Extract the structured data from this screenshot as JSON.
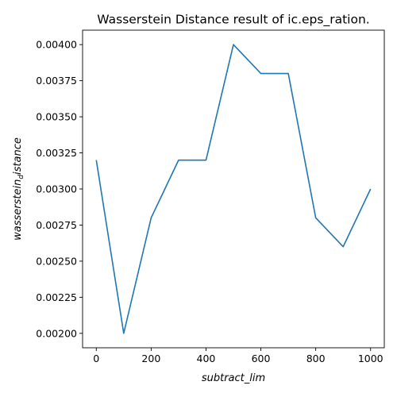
{
  "chart_data": {
    "type": "line",
    "title": "Wasserstein Distance result of ic.eps_ration.",
    "xlabel": "subtract_lim",
    "ylabel": {
      "main": "wasserstein",
      "subscript": "d",
      "rest": "istance"
    },
    "x": [
      0,
      100,
      200,
      300,
      400,
      500,
      600,
      700,
      800,
      900,
      1000
    ],
    "series": [
      {
        "name": "wasserstein_distance",
        "color": "#1f77b4",
        "values": [
          0.0032,
          0.002,
          0.0028,
          0.0032,
          0.0032,
          0.004,
          0.0038,
          0.0038,
          0.0028,
          0.0026,
          0.003
        ]
      }
    ],
    "xlim": [
      -50,
      1050
    ],
    "ylim": [
      0.0019,
      0.0041
    ],
    "xticks": [
      0,
      200,
      400,
      600,
      800,
      1000
    ],
    "xtick_labels": [
      "0",
      "200",
      "400",
      "600",
      "800",
      "1000"
    ],
    "yticks": [
      0.002,
      0.00225,
      0.0025,
      0.00275,
      0.003,
      0.00325,
      0.0035,
      0.00375,
      0.004
    ],
    "ytick_labels": [
      "0.00200",
      "0.00225",
      "0.00250",
      "0.00275",
      "0.00300",
      "0.00325",
      "0.00350",
      "0.00375",
      "0.00400"
    ],
    "grid": false,
    "legend": "none"
  }
}
